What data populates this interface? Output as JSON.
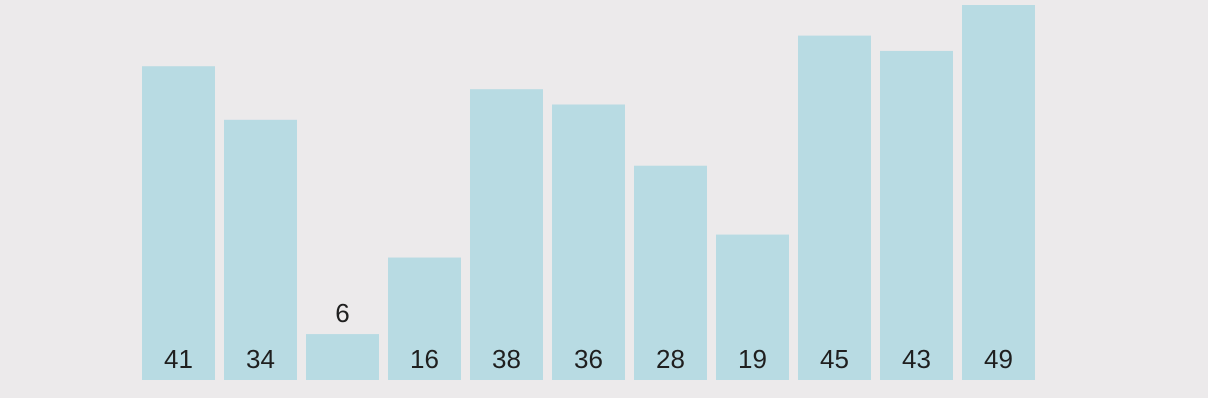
{
  "chart_data": {
    "type": "bar",
    "values": [
      41,
      34,
      6,
      16,
      38,
      36,
      28,
      19,
      45,
      43,
      49
    ],
    "labels": [
      "41",
      "34",
      "6",
      "16",
      "38",
      "36",
      "28",
      "19",
      "45",
      "43",
      "49"
    ],
    "ylim": [
      0,
      49
    ],
    "grid": false,
    "colors": {
      "bar": "#b8dbe3",
      "label": "#1f1f1f",
      "background": "#eceaeb"
    }
  }
}
